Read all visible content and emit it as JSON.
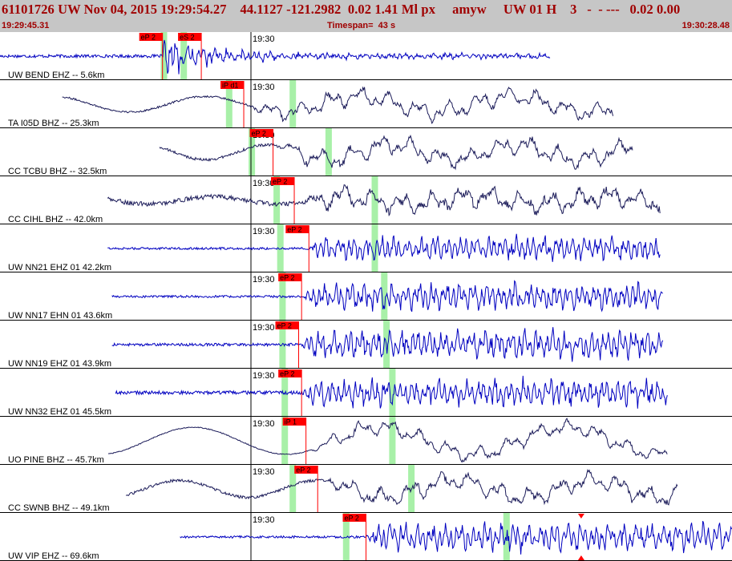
{
  "header": {
    "event_line": "61101726 UW Nov 04, 2015 19:29:54.27    44.1127 -121.2982  0.02 1.41 Ml px     amyw     UW 01 H    3   -  - ---   0.02 0.00",
    "start_time": "19:29:45.31",
    "timespan": "Timespan=  43 s",
    "end_time": "19:30:28.48"
  },
  "colors": {
    "header_bg": "#c6c6c6",
    "header_text": "#a00000",
    "blue_trace": "#0000c0",
    "dark_trace": "#1c1c5a",
    "pick_red": "#ff0000",
    "green_band": "#a8f0a8"
  },
  "minute_label": "19:30",
  "panels": [
    {
      "name": "UW BEND EHZ -- 5.6km",
      "color": "blue",
      "style": "quake",
      "start": 0.0,
      "end": 0.752,
      "pick_x": 0.222,
      "noise": 0.07,
      "amp": 0.85,
      "osc": 0.0,
      "freq": 0.6,
      "green": [
        0.224,
        0.251
      ],
      "picks": [
        {
          "label": "eP 2",
          "x": 0.222
        },
        {
          "label": "eS 2",
          "x": 0.275
        }
      ]
    },
    {
      "name": "TA I05D BHZ -- 25.3km",
      "color": "dark",
      "style": "wavy",
      "start": 0.085,
      "end": 0.838,
      "pick_x": 0.333,
      "noise": 0.04,
      "amp": 0.42,
      "osc": 0.35,
      "freq": 3.6,
      "green": [
        0.313,
        0.4
      ],
      "picks": [
        {
          "label": "iP d1",
          "x": 0.333
        }
      ]
    },
    {
      "name": "CC TCBU BHZ -- 32.5km",
      "color": "dark",
      "style": "wavy",
      "start": 0.218,
      "end": 0.865,
      "pick_x": 0.373,
      "noise": 0.06,
      "amp": 0.42,
      "osc": 0.33,
      "freq": 3.8,
      "green": [
        0.344,
        0.449
      ],
      "picks": [
        {
          "label": "eP 2",
          "x": 0.373
        }
      ]
    },
    {
      "name": "CC CIHL BHZ -- 42.0km",
      "color": "dark",
      "style": "wavy",
      "start": 0.147,
      "end": 0.902,
      "pick_x": 0.402,
      "noise": 0.1,
      "amp": 0.45,
      "osc": 0.16,
      "freq": 4.2,
      "green": [
        0.378,
        0.512
      ],
      "picks": [
        {
          "label": "eP 2",
          "x": 0.402
        }
      ]
    },
    {
      "name": "UW NN21 EHZ 01 42.2km",
      "color": "blue",
      "style": "quake",
      "start": 0.147,
      "end": 0.902,
      "pick_x": 0.422,
      "noise": 0.05,
      "amp": 0.55,
      "osc": 0.0,
      "freq": 0.6,
      "green": [
        0.383,
        0.512
      ],
      "picks": [
        {
          "label": "eP 2",
          "x": 0.422
        }
      ]
    },
    {
      "name": "UW NN17 EHN 01 43.6km",
      "color": "blue",
      "style": "quake",
      "start": 0.153,
      "end": 0.906,
      "pick_x": 0.412,
      "noise": 0.05,
      "amp": 0.6,
      "osc": 0.0,
      "freq": 0.6,
      "green": [
        0.386,
        0.525
      ],
      "picks": [
        {
          "label": "eP 2",
          "x": 0.412
        }
      ]
    },
    {
      "name": "UW NN19 EHZ 01 43.9km",
      "color": "blue",
      "style": "quake",
      "start": 0.153,
      "end": 0.906,
      "pick_x": 0.408,
      "noise": 0.06,
      "amp": 0.65,
      "osc": 0.0,
      "freq": 0.6,
      "green": [
        0.386,
        0.528
      ],
      "picks": [
        {
          "label": "eP 2",
          "x": 0.408
        }
      ]
    },
    {
      "name": "UW NN32 EHZ 01 45.5km",
      "color": "blue",
      "style": "quake",
      "start": 0.158,
      "end": 0.912,
      "pick_x": 0.412,
      "noise": 0.08,
      "amp": 0.6,
      "osc": 0.0,
      "freq": 0.6,
      "green": [
        0.389,
        0.536
      ],
      "picks": [
        {
          "label": "eP 2",
          "x": 0.412
        }
      ]
    },
    {
      "name": "UO PINE BHZ -- 45.7km",
      "color": "dark",
      "style": "wavy",
      "start": 0.148,
      "end": 0.912,
      "pick_x": 0.418,
      "noise": 0.02,
      "amp": 0.35,
      "osc": 0.6,
      "freq": 3.0,
      "green": [
        0.389,
        0.536
      ],
      "picks": [
        {
          "label": "iP 1",
          "x": 0.418
        }
      ]
    },
    {
      "name": "CC SWNB BHZ -- 49.1km",
      "color": "dark",
      "style": "wavy",
      "start": 0.172,
      "end": 0.926,
      "pick_x": 0.434,
      "noise": 0.06,
      "amp": 0.42,
      "osc": 0.38,
      "freq": 4.0,
      "green": [
        0.4,
        0.562
      ],
      "picks": [
        {
          "label": "eP 2",
          "x": 0.434
        }
      ]
    },
    {
      "name": "UW VIP EHZ -- 69.6km",
      "color": "blue",
      "style": "quake",
      "start": 0.246,
      "end": 1.0,
      "pick_x": 0.5,
      "noise": 0.05,
      "amp": 0.65,
      "osc": 0.0,
      "freq": 0.6,
      "green": [
        0.473,
        0.692
      ],
      "picks": [
        {
          "label": "eP 2",
          "x": 0.5
        }
      ],
      "marker_x": 0.794
    }
  ]
}
